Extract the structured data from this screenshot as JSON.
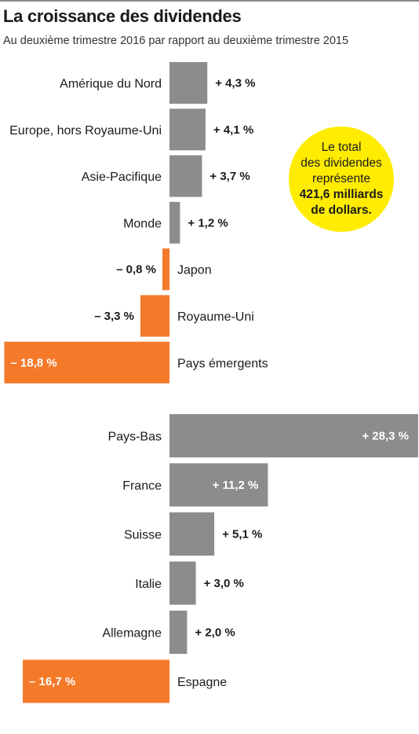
{
  "title": "La croissance des dividendes",
  "subtitle": "Au deuxième trimestre 2016 par rapport au deuxième trimestre 2015",
  "callout": {
    "line1": "Le total",
    "line2": "des dividendes",
    "line3": "représente",
    "line4": "421,6 milliards",
    "line5": "de dollars.",
    "color": "#ffec00"
  },
  "colors": {
    "positive": "#8c8c8c",
    "negative": "#f47a2a"
  },
  "chart_data": [
    {
      "type": "bar",
      "orientation": "horizontal",
      "unit": "%",
      "categories": [
        "Amérique du Nord",
        "Europe, hors Royaume-Uni",
        "Asie-Pacifique",
        "Monde",
        "Japon",
        "Royaume-Uni",
        "Pays émergents"
      ],
      "values": [
        4.3,
        4.1,
        3.7,
        1.2,
        -0.8,
        -3.3,
        -18.8
      ],
      "value_labels": [
        "+ 4,3 %",
        "+ 4,1 %",
        "+ 3,7 %",
        "+ 1,2 %",
        "– 0,8 %",
        "– 3,3 %",
        "– 18,8 %"
      ]
    },
    {
      "type": "bar",
      "orientation": "horizontal",
      "unit": "%",
      "categories": [
        "Pays-Bas",
        "France",
        "Suisse",
        "Italie",
        "Allemagne",
        "Espagne"
      ],
      "values": [
        28.3,
        11.2,
        5.1,
        3.0,
        2.0,
        -16.7
      ],
      "value_labels": [
        "+ 28,3 %",
        "+ 11,2 %",
        "+ 5,1 %",
        "+ 3,0 %",
        "+ 2,0 %",
        "– 16,7 %"
      ]
    }
  ]
}
